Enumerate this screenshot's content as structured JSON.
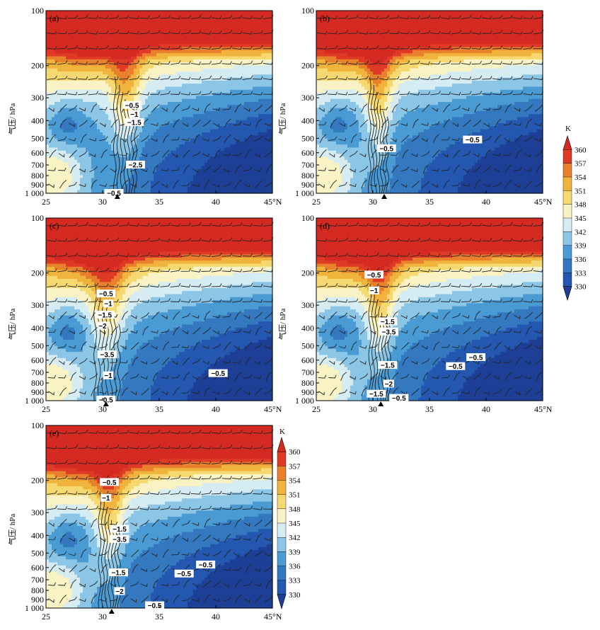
{
  "chart_data": {
    "type": "contour",
    "levels": [
      330,
      333,
      336,
      339,
      342,
      345,
      348,
      351,
      354,
      357,
      360
    ],
    "colorbar_unit": "K",
    "colorbar_ticks": [
      "360",
      "357",
      "354",
      "351",
      "348",
      "345",
      "342",
      "339",
      "336",
      "333",
      "330"
    ],
    "colors": [
      "#1e3f96",
      "#2458b0",
      "#3478c0",
      "#4a9ad4",
      "#8cc6e6",
      "#d4ecf2",
      "#f8f2c4",
      "#f6d870",
      "#f0b43c",
      "#e8802c",
      "#de3a26",
      "#d42a22"
    ],
    "ylabel": "气压/ hPa",
    "xlabel_unit": "°N",
    "xticks": [
      "25",
      "30",
      "35",
      "40",
      "45°N"
    ],
    "xvalues": [
      25,
      30,
      35,
      40,
      45
    ],
    "yticks": [
      "100",
      "200",
      "300",
      "400",
      "500",
      "600",
      "700",
      "800",
      "900",
      "1 000"
    ],
    "yvalues": [
      100,
      200,
      300,
      400,
      500,
      600,
      700,
      800,
      900,
      1000
    ],
    "xlim": [
      25,
      45
    ],
    "ylim": [
      1000,
      100
    ],
    "ylog": true,
    "panels": [
      {
        "label": "(a)",
        "marker_lat": 31.3,
        "core_lat": 32.0,
        "core_width": 1.4,
        "contour_labels": [
          {
            "text": "−0.5",
            "lat": 32.6,
            "p": 330
          },
          {
            "text": "−1",
            "lat": 32.8,
            "p": 370
          },
          {
            "text": "−1.5",
            "lat": 32.8,
            "p": 410
          },
          {
            "text": "−2.5",
            "lat": 32.9,
            "p": 700
          },
          {
            "text": "−0.5",
            "lat": 31.0,
            "p": 1000
          }
        ]
      },
      {
        "label": "(b)",
        "marker_lat": 31.0,
        "core_lat": 30.5,
        "core_width": 1.2,
        "contour_labels": [
          {
            "text": "−0.5",
            "lat": 31.2,
            "p": 570
          },
          {
            "text": "−0.5",
            "lat": 38.8,
            "p": 510
          }
        ]
      },
      {
        "label": "(c)",
        "marker_lat": 30.3,
        "core_lat": 30.4,
        "core_width": 1.6,
        "contour_labels": [
          {
            "text": "−0.5",
            "lat": 30.3,
            "p": 260
          },
          {
            "text": "−1",
            "lat": 30.5,
            "p": 295
          },
          {
            "text": "−1.5",
            "lat": 30.2,
            "p": 340
          },
          {
            "text": "−2",
            "lat": 30.0,
            "p": 390
          },
          {
            "text": "−3.5",
            "lat": 30.4,
            "p": 560
          },
          {
            "text": "−1",
            "lat": 30.5,
            "p": 730
          },
          {
            "text": "−0.5",
            "lat": 40.2,
            "p": 710
          },
          {
            "text": "−0.5",
            "lat": 30.3,
            "p": 990
          }
        ]
      },
      {
        "label": "(d)",
        "marker_lat": 30.7,
        "core_lat": 30.6,
        "core_width": 1.3,
        "contour_labels": [
          {
            "text": "−0.5",
            "lat": 30.1,
            "p": 205
          },
          {
            "text": "−1",
            "lat": 30.1,
            "p": 250
          },
          {
            "text": "−1.5",
            "lat": 31.3,
            "p": 370
          },
          {
            "text": "−3.5",
            "lat": 31.4,
            "p": 420
          },
          {
            "text": "−1.5",
            "lat": 31.3,
            "p": 640
          },
          {
            "text": "−2",
            "lat": 31.4,
            "p": 810
          },
          {
            "text": "−1.5",
            "lat": 30.3,
            "p": 920
          },
          {
            "text": "−0.5",
            "lat": 32.3,
            "p": 970
          },
          {
            "text": "−0.5",
            "lat": 37.3,
            "p": 650
          },
          {
            "text": "−0.5",
            "lat": 39.1,
            "p": 580
          }
        ]
      },
      {
        "label": "(e)",
        "marker_lat": 30.8,
        "core_lat": 30.6,
        "core_width": 1.3,
        "contour_labels": [
          {
            "text": "−0.5",
            "lat": 30.6,
            "p": 205
          },
          {
            "text": "−1",
            "lat": 30.3,
            "p": 250
          },
          {
            "text": "−1.5",
            "lat": 31.5,
            "p": 370
          },
          {
            "text": "−3.5",
            "lat": 31.5,
            "p": 420
          },
          {
            "text": "−1.5",
            "lat": 31.4,
            "p": 640
          },
          {
            "text": "−2",
            "lat": 31.5,
            "p": 810
          },
          {
            "text": "−0.5",
            "lat": 34.6,
            "p": 970
          },
          {
            "text": "−0.5",
            "lat": 37.2,
            "p": 650
          },
          {
            "text": "−0.5",
            "lat": 39.1,
            "p": 580
          }
        ]
      }
    ]
  }
}
